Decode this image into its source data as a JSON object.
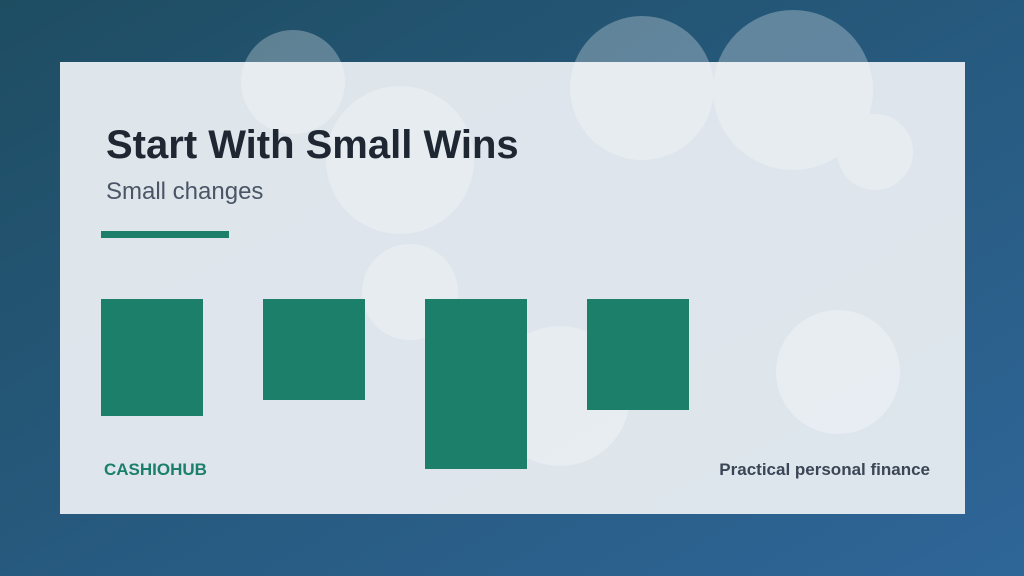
{
  "header": {
    "title": "Start With Small Wins",
    "subtitle": "Small changes"
  },
  "footer": {
    "brand": "CASHIOHUB",
    "tagline": "Practical personal finance"
  }
}
